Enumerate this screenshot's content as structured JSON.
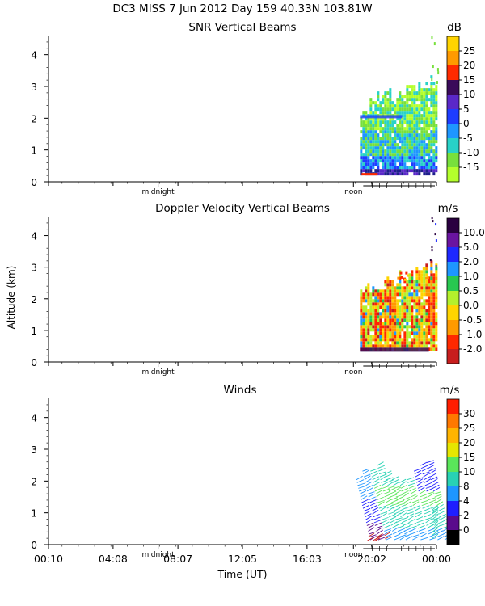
{
  "header": {
    "title": "DC3 MISS    7 Jun 2012 Day 159 40.33N 103.81W"
  },
  "xaxis": {
    "label": "Time (UT)",
    "range_hours": [
      0.1667,
      24.0
    ],
    "ticks": [
      {
        "label": "00:10",
        "hour": 0.1667
      },
      {
        "label": "04:08",
        "hour": 4.1333
      },
      {
        "label": "08:07",
        "hour": 8.1167
      },
      {
        "label": "12:05",
        "hour": 12.0833
      },
      {
        "label": "16:03",
        "hour": 16.05
      },
      {
        "label": "20:02",
        "hour": 20.0333
      },
      {
        "label": "00:00",
        "hour": 24.0
      }
    ],
    "markers": [
      {
        "label": "midnight",
        "hour": 6.9
      },
      {
        "label": "noon",
        "hour": 18.9
      }
    ]
  },
  "yaxis": {
    "label": "Altitude (km)",
    "range_km": [
      0,
      4.5
    ],
    "ticks": [
      "0",
      "1",
      "2",
      "3",
      "4"
    ]
  },
  "chart_data": [
    {
      "type": "heatmap",
      "title": "SNR Vertical Beams",
      "units": "dB",
      "colorbar_labels": [
        "25",
        "20",
        "15",
        "10",
        "5",
        "0",
        "-5",
        "-10",
        "-15"
      ],
      "colorbar_colors": [
        "#ffd400",
        "#ff9a00",
        "#ff2a00",
        "#3a0a5a",
        "#5a28c8",
        "#1e3cff",
        "#1e96ff",
        "#28d2c8",
        "#78e03c",
        "#b4ff2c"
      ],
      "data_window_hours": [
        19.3,
        24.0
      ],
      "data_altitude_km": [
        0.15,
        4.6
      ]
    },
    {
      "type": "heatmap",
      "title": "Doppler Velocity Vertical Beams",
      "units": "m/s",
      "colorbar_labels": [
        "10.0",
        "5.0",
        "2.0",
        "1.0",
        "0.5",
        "0.0",
        "-0.5",
        "-1.0",
        "-2.0"
      ],
      "colorbar_colors": [
        "#2a0040",
        "#6a14a0",
        "#1e28ff",
        "#1e96ff",
        "#28c850",
        "#b4f02c",
        "#ffd400",
        "#ff9a00",
        "#ff2800",
        "#c81e1e"
      ],
      "data_window_hours": [
        19.3,
        24.0
      ],
      "data_altitude_km": [
        0.2,
        4.6
      ]
    },
    {
      "type": "scatter",
      "title": "Winds",
      "units": "m/s",
      "colorbar_labels": [
        "30",
        "25",
        "20",
        "15",
        "10",
        "8",
        "4",
        "2",
        "0"
      ],
      "colorbar_colors": [
        "#ff1e00",
        "#ff7800",
        "#ffb400",
        "#e6e600",
        "#5ae65a",
        "#28d2b4",
        "#1e96ff",
        "#1e1eff",
        "#5a0a8c",
        "#000000"
      ],
      "profiles_hours": [
        19.35,
        19.75,
        20.2,
        20.65,
        21.1,
        21.55,
        22.0,
        22.45,
        22.9,
        23.3,
        23.7
      ],
      "data_altitude_km": [
        0.0,
        2.6
      ]
    }
  ]
}
